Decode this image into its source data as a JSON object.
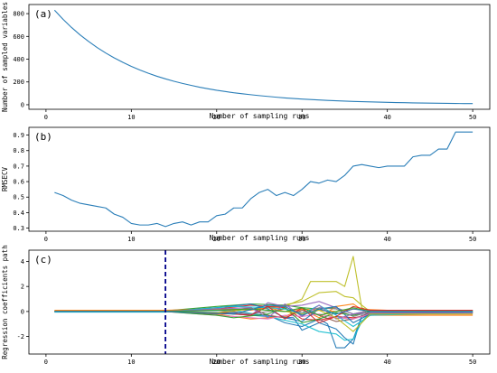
{
  "chart_data": [
    {
      "type": "line",
      "panel_label": "(a)",
      "xlabel": "Number of sampling runs",
      "ylabel": "Number of sampled variables",
      "xlim": [
        -2,
        52
      ],
      "ylim": [
        -40,
        880
      ],
      "xticks": [
        0,
        10,
        20,
        30,
        40,
        50
      ],
      "yticks": [
        0,
        200,
        400,
        600,
        800
      ],
      "series": [
        {
          "color": "#1f77b4",
          "x": [
            1,
            2,
            3,
            4,
            5,
            6,
            7,
            8,
            9,
            10,
            11,
            12,
            13,
            14,
            15,
            16,
            17,
            18,
            19,
            20,
            21,
            22,
            23,
            24,
            25,
            26,
            27,
            28,
            29,
            30,
            31,
            32,
            33,
            34,
            35,
            36,
            37,
            38,
            39,
            40,
            41,
            42,
            43,
            44,
            45,
            46,
            47,
            48,
            49,
            50
          ],
          "y": [
            830,
            750,
            678,
            613,
            555,
            502,
            454,
            411,
            372,
            337,
            305,
            276,
            250,
            227,
            206,
            187,
            170,
            154,
            140,
            127,
            116,
            105,
            96,
            88,
            80,
            73,
            66,
            60,
            55,
            50,
            46,
            42,
            38,
            35,
            32,
            29,
            27,
            25,
            23,
            21,
            19,
            18,
            16,
            15,
            14,
            13,
            12,
            11,
            10,
            10
          ]
        }
      ]
    },
    {
      "type": "line",
      "panel_label": "(b)",
      "xlabel": "Number of sampling runs",
      "ylabel": "RMSECV",
      "xlim": [
        -2,
        52
      ],
      "ylim": [
        0.28,
        0.95
      ],
      "xticks": [
        0,
        10,
        20,
        30,
        40,
        50
      ],
      "yticks": [
        0.3,
        0.4,
        0.5,
        0.6,
        0.7,
        0.8,
        0.9
      ],
      "series": [
        {
          "color": "#1f77b4",
          "x": [
            1,
            2,
            3,
            4,
            5,
            6,
            7,
            8,
            9,
            10,
            11,
            12,
            13,
            14,
            15,
            16,
            17,
            18,
            19,
            20,
            21,
            22,
            23,
            24,
            25,
            26,
            27,
            28,
            29,
            30,
            31,
            32,
            33,
            34,
            35,
            36,
            37,
            38,
            39,
            40,
            41,
            42,
            43,
            44,
            45,
            46,
            47,
            48,
            49,
            50
          ],
          "y": [
            0.53,
            0.51,
            0.48,
            0.46,
            0.45,
            0.44,
            0.43,
            0.39,
            0.37,
            0.33,
            0.32,
            0.32,
            0.33,
            0.31,
            0.33,
            0.34,
            0.32,
            0.34,
            0.34,
            0.38,
            0.39,
            0.43,
            0.43,
            0.49,
            0.53,
            0.55,
            0.51,
            0.53,
            0.51,
            0.55,
            0.6,
            0.59,
            0.61,
            0.6,
            0.64,
            0.7,
            0.71,
            0.7,
            0.69,
            0.7,
            0.7,
            0.7,
            0.76,
            0.77,
            0.77,
            0.81,
            0.81,
            0.92,
            0.92,
            0.92
          ]
        }
      ]
    },
    {
      "type": "line",
      "panel_label": "(c)",
      "xlabel": "Number of sampling runs",
      "ylabel": "Regression coefficients path",
      "xlim": [
        -2,
        52
      ],
      "ylim": [
        -3.4,
        4.9
      ],
      "xticks": [
        0,
        10,
        20,
        30,
        40,
        50
      ],
      "yticks": [
        -2,
        0,
        2,
        4
      ],
      "vline": {
        "x": 14,
        "color": "#00008b",
        "style": "dashed"
      },
      "series": [
        {
          "color": "#bcbd22",
          "x": [
            1,
            14,
            24,
            28,
            30,
            31,
            32,
            34,
            35,
            36,
            37,
            38,
            50
          ],
          "y": [
            0,
            0,
            0.2,
            0.4,
            1.0,
            2.4,
            2.4,
            2.4,
            2.0,
            4.4,
            0.3,
            0,
            0
          ]
        },
        {
          "color": "#bcbd22",
          "x": [
            1,
            14,
            24,
            27,
            30,
            32,
            34,
            35,
            36,
            37,
            38,
            50
          ],
          "y": [
            0,
            0,
            0.2,
            0.4,
            0.8,
            1.5,
            1.6,
            1.2,
            1.1,
            0.5,
            0,
            0
          ]
        },
        {
          "color": "#1f77b4",
          "x": [
            1,
            14,
            22,
            26,
            28,
            30,
            32,
            33,
            34,
            35,
            36,
            37,
            38,
            50
          ],
          "y": [
            0,
            0,
            -0.1,
            -0.3,
            -0.9,
            -1.2,
            -0.6,
            -1.0,
            -2.9,
            -2.9,
            -2.2,
            -0.4,
            0,
            0
          ]
        },
        {
          "color": "#1f77b4",
          "x": [
            1,
            14,
            22,
            26,
            29,
            30,
            32,
            34,
            35,
            36,
            37,
            50
          ],
          "y": [
            0,
            0,
            -0.2,
            -0.4,
            -0.5,
            -1.5,
            -0.9,
            -1.4,
            -2.1,
            -2.6,
            -0.3,
            0
          ]
        },
        {
          "color": "#17becf",
          "x": [
            1,
            14,
            22,
            26,
            30,
            32,
            34,
            35,
            36,
            37,
            38,
            50
          ],
          "y": [
            0,
            0,
            0.1,
            -0.4,
            -1.0,
            -1.6,
            -1.8,
            -2.3,
            -2.2,
            -0.8,
            -0.1,
            0
          ]
        },
        {
          "color": "#d62728",
          "x": [
            1,
            14,
            20,
            24,
            28,
            30,
            32,
            34,
            36,
            38,
            40,
            44,
            50
          ],
          "y": [
            0,
            0,
            0.2,
            0.5,
            0.3,
            -0.6,
            -0.7,
            -0.4,
            -0.5,
            -0.3,
            -0.2,
            -0.1,
            -0.1
          ]
        },
        {
          "color": "#2ca02c",
          "x": [
            1,
            14,
            20,
            24,
            28,
            30,
            32,
            34,
            36,
            38,
            50
          ],
          "y": [
            0,
            0.05,
            0.4,
            0.6,
            0.5,
            0.3,
            0.2,
            0.3,
            -0.2,
            0.1,
            0.1
          ]
        },
        {
          "color": "#ff7f0e",
          "x": [
            1,
            14,
            20,
            24,
            28,
            30,
            32,
            34,
            36,
            38,
            40,
            46,
            50
          ],
          "y": [
            0,
            0,
            -0.2,
            -0.6,
            -0.4,
            0.2,
            -0.5,
            0.4,
            0.6,
            -0.3,
            -0.3,
            -0.3,
            -0.3
          ]
        },
        {
          "color": "#9467bd",
          "x": [
            1,
            14,
            20,
            24,
            26,
            28,
            30,
            32,
            34,
            36,
            38,
            50
          ],
          "y": [
            0,
            0,
            0.3,
            -0.3,
            0.7,
            0.4,
            0.5,
            0.8,
            0.3,
            -0.2,
            0.1,
            0.1
          ]
        },
        {
          "color": "#8c564b",
          "x": [
            1,
            14,
            20,
            24,
            26,
            28,
            30,
            32,
            34,
            36,
            38,
            50
          ],
          "y": [
            0,
            0,
            -0.2,
            0.3,
            -0.3,
            -0.5,
            0.1,
            -0.3,
            -0.8,
            -0.6,
            -0.1,
            -0.1
          ]
        },
        {
          "color": "#e377c2",
          "x": [
            1,
            14,
            18,
            22,
            26,
            28,
            30,
            32,
            34,
            36,
            38,
            50
          ],
          "y": [
            0,
            0,
            -0.2,
            -0.4,
            -0.6,
            -0.3,
            -0.4,
            -0.2,
            -0.5,
            -0.6,
            -0.2,
            -0.2
          ]
        },
        {
          "color": "#7f7f7f",
          "x": [
            1,
            14,
            20,
            24,
            28,
            30,
            32,
            34,
            36,
            38,
            50
          ],
          "y": [
            0,
            0,
            0.1,
            -0.2,
            0.2,
            -0.1,
            0.3,
            0.2,
            -0.4,
            0.0,
            0.0
          ]
        },
        {
          "color": "#1f77b4",
          "x": [
            1,
            14,
            20,
            24,
            26,
            28,
            30,
            32,
            34,
            36,
            38,
            44,
            50
          ],
          "y": [
            0,
            0,
            0.3,
            0.6,
            0.2,
            -0.5,
            -0.8,
            0.2,
            0.4,
            -0.9,
            -0.2,
            -0.1,
            -0.1
          ]
        },
        {
          "color": "#2ca02c",
          "x": [
            1,
            14,
            20,
            22,
            26,
            28,
            30,
            32,
            34,
            36,
            38,
            50
          ],
          "y": [
            0,
            0,
            -0.3,
            -0.5,
            -0.2,
            0.3,
            -0.9,
            -0.6,
            -0.1,
            -0.3,
            0.0,
            0.0
          ]
        },
        {
          "color": "#ff7f0e",
          "x": [
            1,
            14,
            20,
            24,
            26,
            28,
            30,
            32,
            34,
            36,
            40,
            50
          ],
          "y": [
            0.1,
            0.1,
            0.2,
            0.1,
            0.3,
            0.0,
            0.2,
            0.1,
            0.0,
            0.2,
            0.1,
            0.1
          ]
        },
        {
          "color": "#17becf",
          "x": [
            1,
            14,
            18,
            22,
            26,
            28,
            30,
            32,
            34,
            36,
            38,
            50
          ],
          "y": [
            -0.05,
            -0.05,
            0.2,
            0.4,
            0.3,
            0.2,
            -0.2,
            0.5,
            -0.3,
            -1.2,
            -0.3,
            -0.1
          ]
        },
        {
          "color": "#d62728",
          "x": [
            1,
            14,
            20,
            24,
            26,
            28,
            30,
            32,
            34,
            36,
            38,
            50
          ],
          "y": [
            0,
            0,
            -0.1,
            -0.3,
            0.4,
            -0.6,
            0.3,
            -0.9,
            -0.4,
            0.4,
            0.1,
            0.1
          ]
        },
        {
          "color": "#9467bd",
          "x": [
            1,
            14,
            20,
            24,
            26,
            28,
            30,
            32,
            34,
            36,
            38,
            50
          ],
          "y": [
            0,
            0,
            0.2,
            0.3,
            -0.5,
            0.6,
            -0.4,
            0.5,
            -0.6,
            -0.2,
            -0.1,
            -0.1
          ]
        },
        {
          "color": "#bcbd22",
          "x": [
            1,
            14,
            20,
            24,
            26,
            28,
            30,
            32,
            34,
            36,
            38,
            50
          ],
          "y": [
            0,
            0,
            -0.1,
            0.2,
            0.1,
            0.0,
            -0.2,
            0.1,
            -0.5,
            -1.6,
            -0.2,
            -0.2
          ]
        },
        {
          "color": "#2ca02c",
          "x": [
            1,
            14,
            20,
            24,
            28,
            30,
            32,
            36,
            38,
            50
          ],
          "y": [
            0,
            0,
            0.1,
            0.2,
            0.0,
            0.3,
            -0.3,
            0.3,
            0.0,
            0.0
          ]
        },
        {
          "color": "#1f77b4",
          "x": [
            1,
            14,
            22,
            26,
            28,
            30,
            32,
            34,
            36,
            38,
            50
          ],
          "y": [
            0,
            0,
            -0.2,
            0.5,
            0.4,
            -0.3,
            0.2,
            -0.2,
            0.2,
            0.0,
            0.0
          ]
        }
      ]
    }
  ]
}
